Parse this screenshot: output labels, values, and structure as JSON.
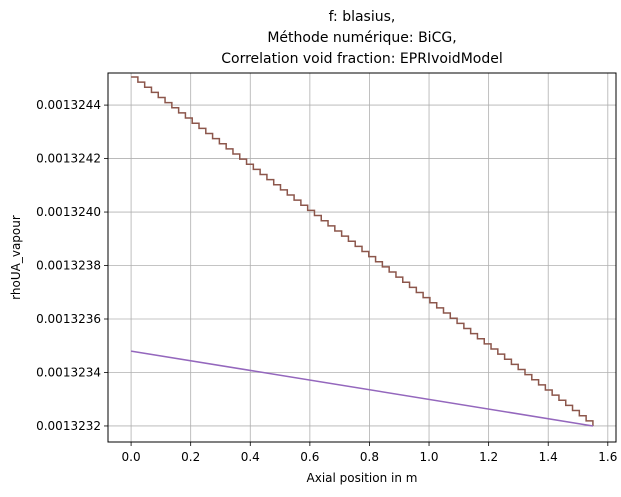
{
  "chart_data": {
    "type": "line",
    "title_lines": [
      "f: blasius,",
      "Méthode numérique: BiCG,",
      "Correlation void fraction: EPRIvoidModel"
    ],
    "xlabel": "Axial position in m",
    "ylabel": "rhoUA_vapour",
    "xlim": [
      -0.0775,
      1.6275
    ],
    "ylim": [
      0.00132314,
      0.00132452
    ],
    "xticks": [
      0.0,
      0.2,
      0.4,
      0.6,
      0.8,
      1.0,
      1.2,
      1.4,
      1.6
    ],
    "xtick_labels": [
      "0.0",
      "0.2",
      "0.4",
      "0.6",
      "0.8",
      "1.0",
      "1.2",
      "1.4",
      "1.6"
    ],
    "yticks": [
      0.0013232,
      0.0013234,
      0.0013236,
      0.0013238,
      0.001324,
      0.0013242,
      0.0013244
    ],
    "ytick_labels": [
      "0.0013232",
      "0.0013234",
      "0.0013236",
      "0.0013238",
      "0.0013240",
      "0.0013242",
      "0.0013244"
    ],
    "grid": true,
    "series": [
      {
        "name": "",
        "color": "#8c564b",
        "style": "steps",
        "x_start": 0.0,
        "x_end": 1.55,
        "steps": 68,
        "y_start": 0.001324505,
        "y_end": 0.0013232
      },
      {
        "name": "",
        "color": "#9467bd",
        "style": "line",
        "x": [
          0.0,
          1.55
        ],
        "y": [
          0.00132348,
          0.0013232
        ]
      }
    ]
  }
}
